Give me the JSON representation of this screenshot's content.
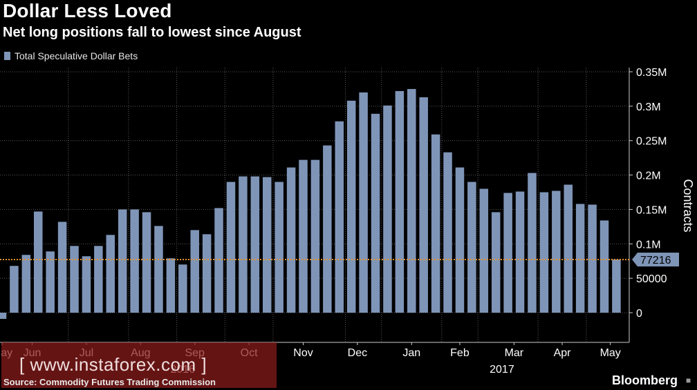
{
  "header": {
    "title": "Dollar Less Loved",
    "subtitle": "Net long positions fall to lowest since August"
  },
  "legend": {
    "label": "Total Speculative Dollar Bets"
  },
  "colors": {
    "bar": "#7f95b8",
    "background": "#000000",
    "grid": "#5a5a5a",
    "reference_line": "#e6952a",
    "callout_bg": "#7f95b8"
  },
  "chart_data": {
    "type": "bar",
    "title": "Dollar Less Loved",
    "subtitle": "Net long positions fall to lowest since August",
    "series_name": "Total Speculative Dollar Bets",
    "ylabel": "Contracts",
    "xlabel": "",
    "ylim": [
      -12000,
      360000
    ],
    "yticks": [
      0,
      50000,
      100000,
      150000,
      200000,
      250000,
      300000,
      350000
    ],
    "ytick_labels": [
      "0",
      "50000",
      "0.1M",
      "0.15M",
      "0.2M",
      "0.25M",
      "0.3M",
      "0.35M"
    ],
    "values": [
      -9000,
      68000,
      84000,
      147000,
      89000,
      132000,
      97000,
      82000,
      97000,
      113000,
      150000,
      150000,
      146000,
      126000,
      79000,
      70000,
      120000,
      114000,
      152000,
      190000,
      198000,
      198000,
      197000,
      190000,
      211000,
      222000,
      222000,
      243000,
      278000,
      308000,
      320000,
      289000,
      301000,
      322000,
      325000,
      313000,
      259000,
      233000,
      211000,
      190000,
      180000,
      146000,
      174000,
      176000,
      203000,
      175000,
      177000,
      186000,
      158000,
      157000,
      134000,
      77216
    ],
    "month_labels": [
      {
        "label": "May",
        "index": 0
      },
      {
        "label": "Jun",
        "index": 2.5
      },
      {
        "label": "Jul",
        "index": 7
      },
      {
        "label": "Aug",
        "index": 11.5
      },
      {
        "label": "Sep",
        "index": 16
      },
      {
        "label": "Oct",
        "index": 20.5
      },
      {
        "label": "Nov",
        "index": 25
      },
      {
        "label": "Dec",
        "index": 29.5
      },
      {
        "label": "Jan",
        "index": 34
      },
      {
        "label": "Feb",
        "index": 38
      },
      {
        "label": "Mar",
        "index": 42.5
      },
      {
        "label": "Apr",
        "index": 46.5
      },
      {
        "label": "May",
        "index": 50.5
      }
    ],
    "year_labels": [
      {
        "label": "2016",
        "index": 15
      },
      {
        "label": "2017",
        "index": 41.5
      }
    ],
    "reference_line": {
      "value": 77216,
      "label": "77216"
    }
  },
  "footer": {
    "source": "Source: Commodity Futures Trading Commission",
    "brand": "Bloomberg",
    "watermark": "[ www.instaforex.com ]"
  }
}
